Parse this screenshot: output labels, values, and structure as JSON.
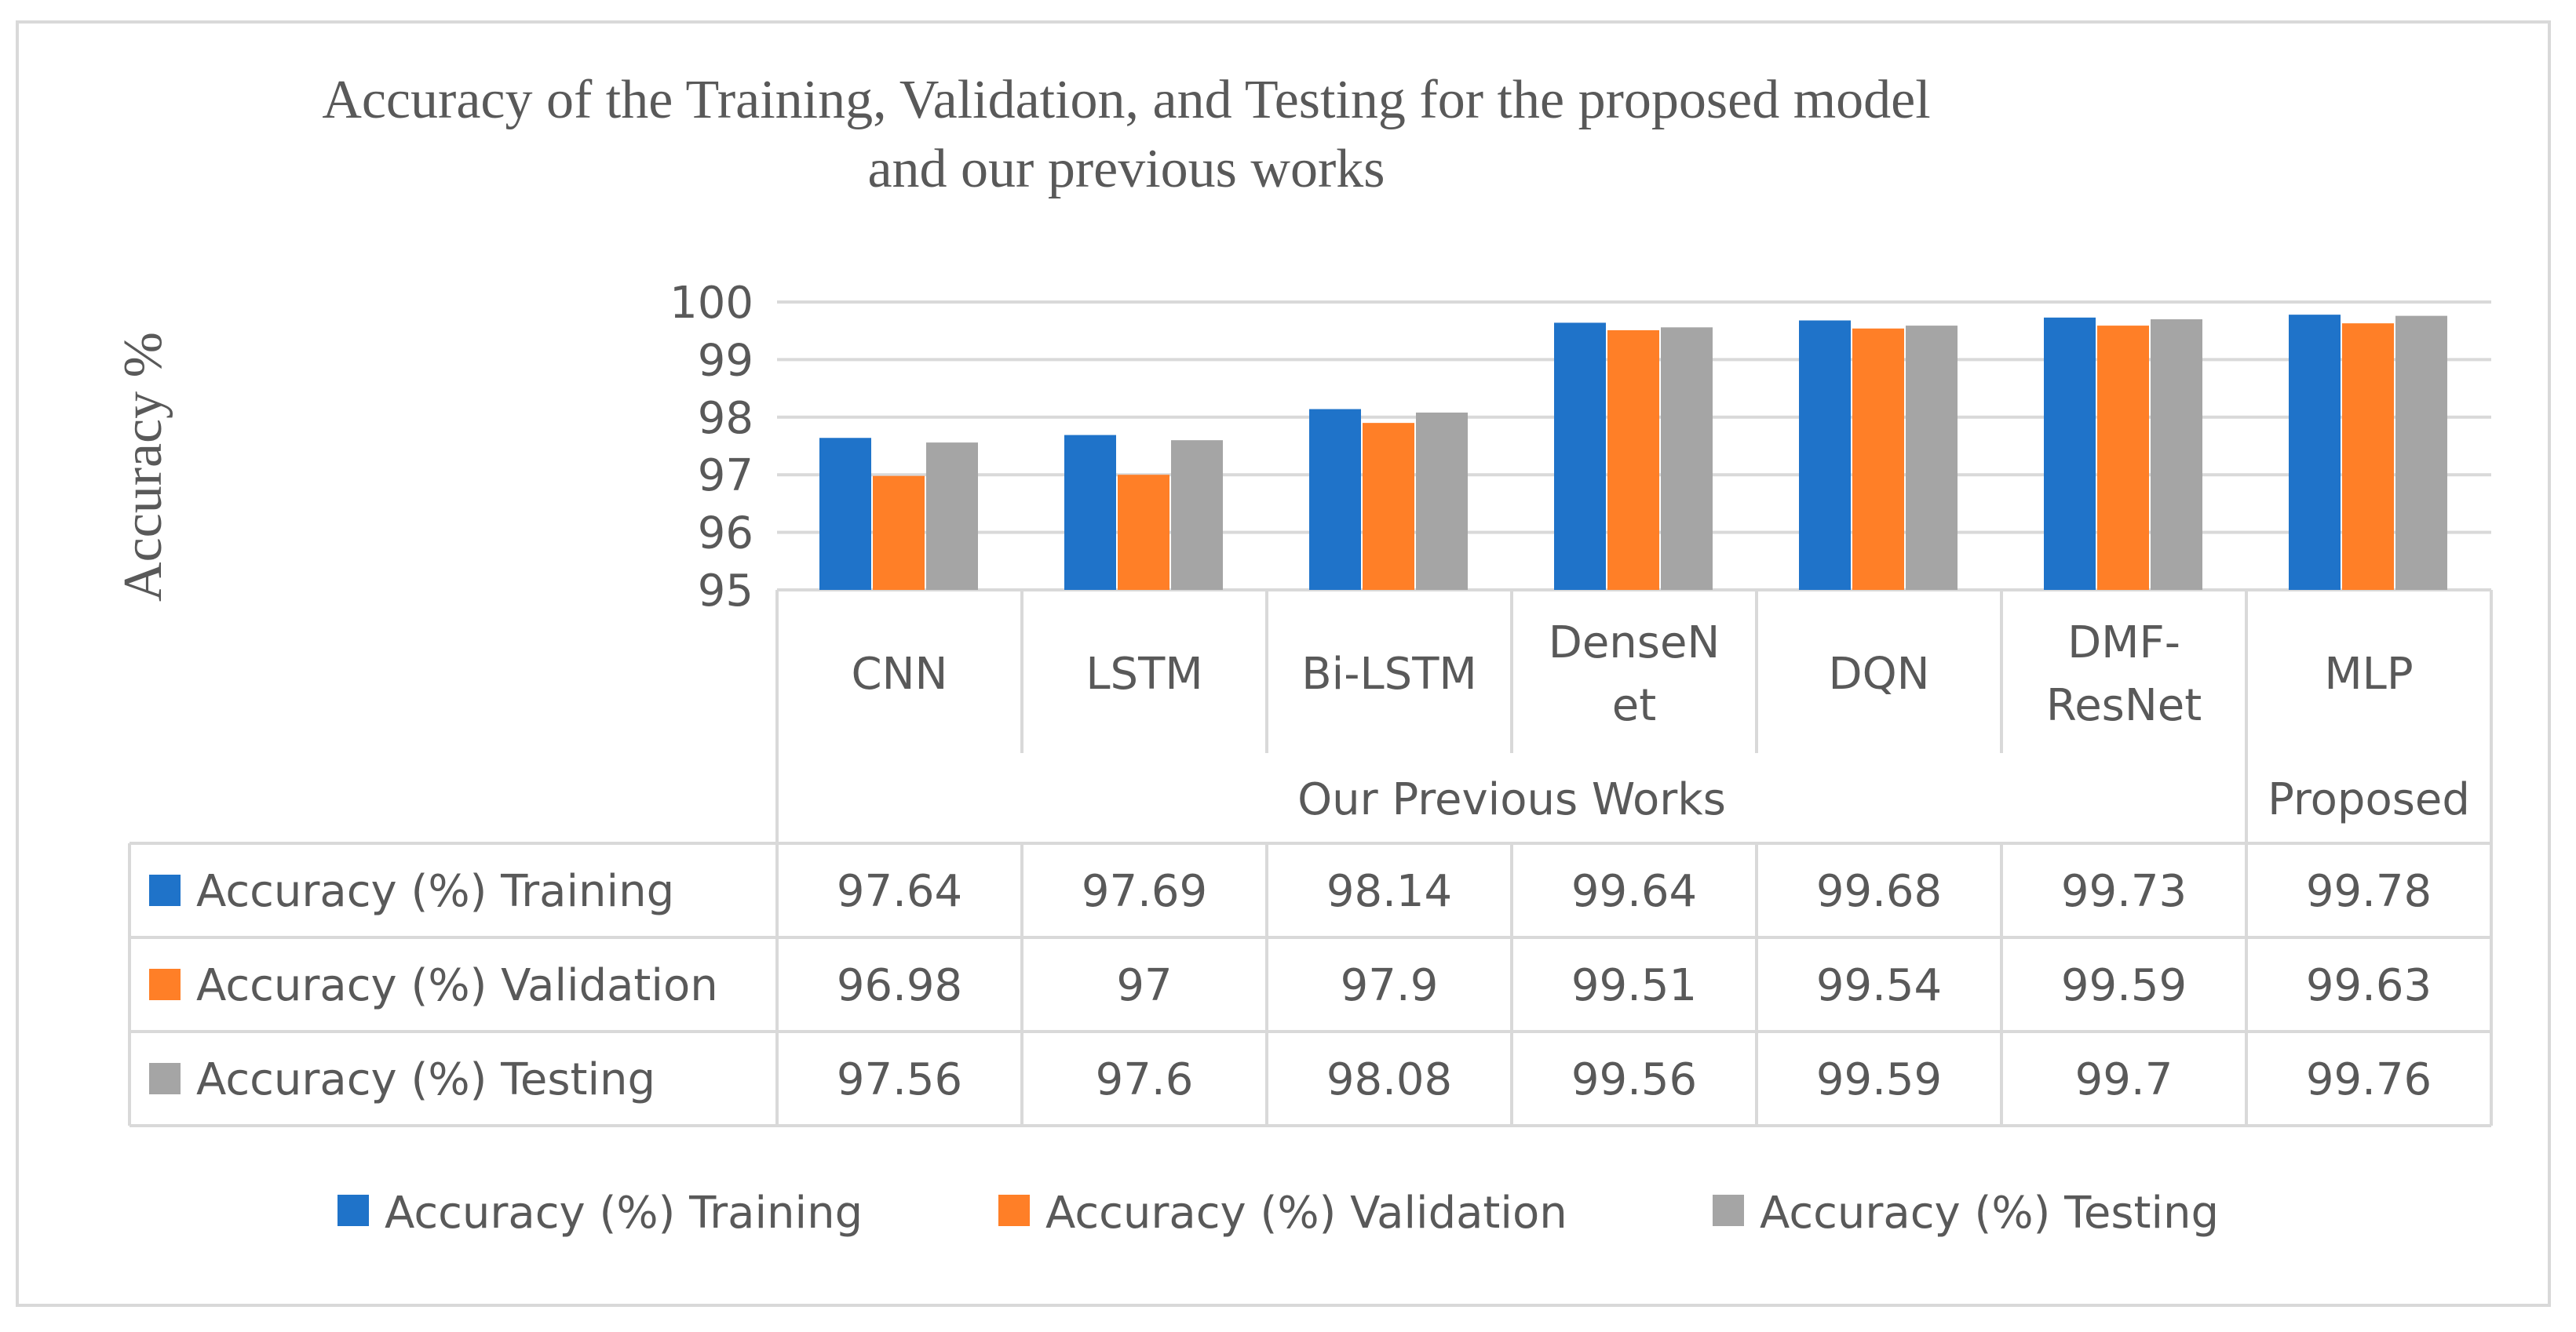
{
  "chart_data": {
    "type": "bar",
    "title_lines": [
      "Accuracy of the Training, Validation, and Testing for the proposed model",
      "and our previous works"
    ],
    "ylabel": "Accuracy %",
    "ylim": [
      95,
      100
    ],
    "yticks": [
      "95",
      "96",
      "97",
      "98",
      "99",
      "100"
    ],
    "category_lines": [
      [
        "CNN"
      ],
      [
        "LSTM"
      ],
      [
        "Bi-LSTM"
      ],
      [
        "DenseN",
        "et"
      ],
      [
        "DQN"
      ],
      [
        "DMF-",
        "ResNet"
      ],
      [
        "MLP"
      ]
    ],
    "categories": [
      "CNN",
      "LSTM",
      "Bi-LSTM",
      "DenseNet",
      "DQN",
      "DMF-ResNet",
      "MLP"
    ],
    "groups": [
      {
        "label": "Our Previous Works",
        "count": 6
      },
      {
        "label": "Proposed",
        "count": 1
      }
    ],
    "series": [
      {
        "name": "Accuracy (%) Training",
        "color": "#1f73c9",
        "values": [
          97.64,
          97.69,
          98.14,
          99.64,
          99.68,
          99.73,
          99.78
        ],
        "labels": [
          "97.64",
          "97.69",
          "98.14",
          "99.64",
          "99.68",
          "99.73",
          "99.78"
        ]
      },
      {
        "name": "Accuracy (%) Validation",
        "color": "#ff7f27",
        "values": [
          96.98,
          97,
          97.9,
          99.51,
          99.54,
          99.59,
          99.63
        ],
        "labels": [
          "96.98",
          "97",
          "97.9",
          "99.51",
          "99.54",
          "99.59",
          "99.63"
        ]
      },
      {
        "name": "Accuracy (%) Testing",
        "color": "#a5a5a5",
        "values": [
          97.56,
          97.6,
          98.08,
          99.56,
          99.59,
          99.7,
          99.76
        ],
        "labels": [
          "97.56",
          "97.6",
          "98.08",
          "99.56",
          "99.59",
          "99.7",
          "99.76"
        ]
      }
    ],
    "grid": true,
    "legend_position": "bottom",
    "data_table": true
  }
}
